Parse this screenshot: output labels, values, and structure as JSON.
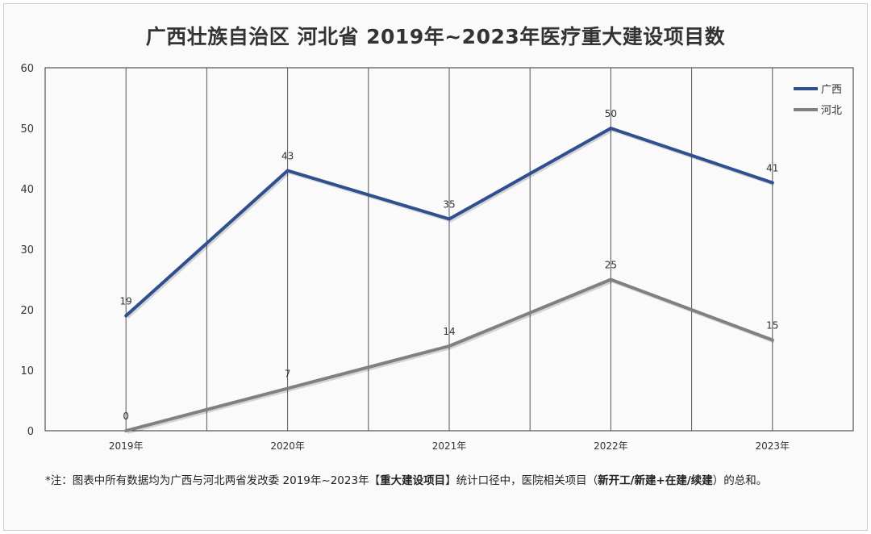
{
  "chart_data": {
    "type": "line",
    "title": "广西壮族自治区 河北省 2019年~2023年医疗重大建设项目数",
    "categories": [
      "2019年",
      "2020年",
      "2021年",
      "2022年",
      "2023年"
    ],
    "ylim": [
      0,
      60
    ],
    "yticks": [
      "0",
      "10",
      "20",
      "30",
      "40",
      "50",
      "60"
    ],
    "grid": true,
    "legend_position": "top-right",
    "series": [
      {
        "name": "广西",
        "values": [
          19,
          43,
          35,
          50,
          41
        ],
        "color": "#2f4f8f"
      },
      {
        "name": "河北",
        "values": [
          0,
          7,
          14,
          25,
          15
        ],
        "color": "#808080"
      }
    ]
  },
  "footnote": {
    "prefix": "*注：图表中所有数据均为广西与河北两省发改委 2019年~2023年【",
    "bold1": "重大建设项目",
    "middle": "】统计口径中，医院相关项目（",
    "bold2": "新开工/新建+在建/续建",
    "suffix": "）的总和。"
  }
}
